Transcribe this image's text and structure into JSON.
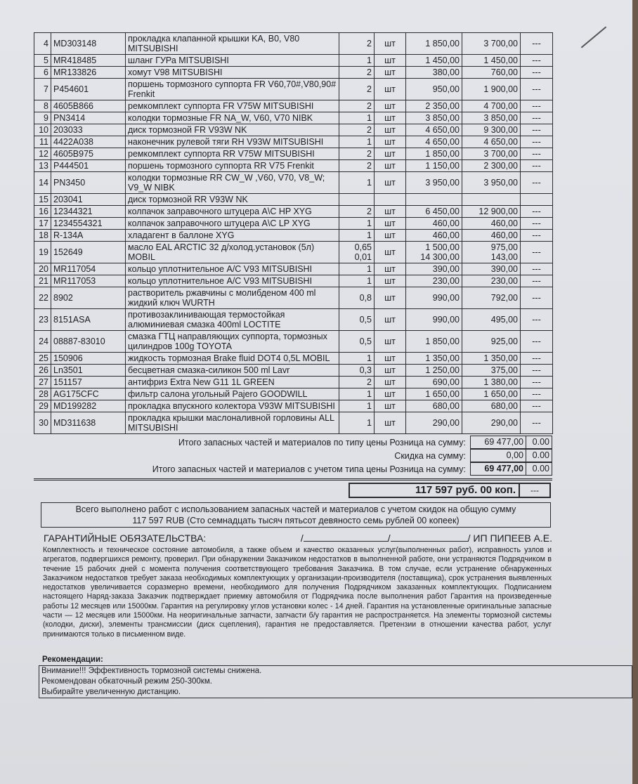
{
  "items": [
    {
      "n": "4",
      "code": "MD303148",
      "name": "прокладка клапанной крышки KA, B0, V80 MITSUBISHI",
      "qty": "2",
      "unit": "шт",
      "price": "1 850,00",
      "sum": "3 700,00",
      "disc": "---",
      "lines": 2
    },
    {
      "n": "5",
      "code": "MR418485",
      "name": "шланг ГУРа MITSUBISHI",
      "qty": "1",
      "unit": "шт",
      "price": "1 450,00",
      "sum": "1 450,00",
      "disc": "---",
      "lines": 1
    },
    {
      "n": "6",
      "code": "MR133826",
      "name": "хомут V98 MITSUBISHI",
      "qty": "2",
      "unit": "шт",
      "price": "380,00",
      "sum": "760,00",
      "disc": "---",
      "lines": 1
    },
    {
      "n": "7",
      "code": "P454601",
      "name": "поршень тормозного суппорта FR V60,70#,V80,90# Frenkit",
      "qty": "2",
      "unit": "шт",
      "price": "950,00",
      "sum": "1 900,00",
      "disc": "---",
      "lines": 2
    },
    {
      "n": "8",
      "code": "4605B866",
      "name": "ремкомплект суппорта FR V75W MITSUBISHI",
      "qty": "2",
      "unit": "шт",
      "price": "2 350,00",
      "sum": "4 700,00",
      "disc": "---",
      "lines": 1
    },
    {
      "n": "9",
      "code": "PN3414",
      "name": "колодки тормозные FR NA_W, V60, V70 NIBK",
      "qty": "1",
      "unit": "шт",
      "price": "3 850,00",
      "sum": "3 850,00",
      "disc": "---",
      "lines": 1
    },
    {
      "n": "10",
      "code": "203033",
      "name": "диск тормозной FR V93W NK",
      "qty": "2",
      "unit": "шт",
      "price": "4 650,00",
      "sum": "9 300,00",
      "disc": "---",
      "lines": 1
    },
    {
      "n": "11",
      "code": "4422A038",
      "name": "наконечник рулевой тяги RH V93W MITSUBISHI",
      "qty": "1",
      "unit": "шт",
      "price": "4 650,00",
      "sum": "4 650,00",
      "disc": "---",
      "lines": 2
    },
    {
      "n": "12",
      "code": "4605B975",
      "name": "ремкомплект суппорта RR V75W MITSUBISHI",
      "qty": "2",
      "unit": "шт",
      "price": "1 850,00",
      "sum": "3 700,00",
      "disc": "---",
      "lines": 1
    },
    {
      "n": "13",
      "code": "P444501",
      "name": "поршень тормозного суппорта RR V75 Frenkit",
      "qty": "2",
      "unit": "шт",
      "price": "1 150,00",
      "sum": "2 300,00",
      "disc": "---",
      "lines": 1
    },
    {
      "n": "14",
      "code": "PN3450",
      "name": "колодки тормозные RR CW_W ,V60, V70, V8_W; V9_W NIBK",
      "qty": "1",
      "unit": "шт",
      "price": "3 950,00",
      "sum": "3 950,00",
      "disc": "---",
      "lines": 3
    },
    {
      "n": "15",
      "code": "203041",
      "name": "диск тормозной RR V93W NK",
      "qty": "",
      "unit": "",
      "price": "",
      "sum": "",
      "disc": "",
      "lines": 1
    },
    {
      "n": "16",
      "code": "12344321",
      "name": "колпачок заправочного штуцера A\\C HP XYG",
      "qty": "2",
      "unit": "шт",
      "price": "6 450,00",
      "sum": "12 900,00",
      "disc": "---",
      "lines": 1
    },
    {
      "n": "17",
      "code": "1234554321",
      "name": "колпачок заправочного штуцера A\\C LP XYG",
      "qty": "1",
      "unit": "шт",
      "price": "460,00",
      "sum": "460,00",
      "disc": "---",
      "lines": 1
    },
    {
      "n": "18",
      "code": "R-134A",
      "name": "хладагент в баллоне XYG",
      "qty": "1",
      "unit": "шт",
      "price": "460,00",
      "sum": "460,00",
      "disc": "---",
      "lines": 1
    },
    {
      "n": "19",
      "code": "152649",
      "name": "масло EAL ARCTIC 32 д/холод.установок (5л) MOBIL",
      "qty": "0,65",
      "unit": "шт",
      "price": "1 500,00",
      "sum": "975,00",
      "disc": "---",
      "lines": 2,
      "qty2": "0,01",
      "price2": "14 300,00",
      "sum2": "143,00"
    },
    {
      "n": "20",
      "code": "MR117054",
      "name": "кольцо уплотнительное A/C V93 MITSUBISHI",
      "qty": "1",
      "unit": "шт",
      "price": "390,00",
      "sum": "390,00",
      "disc": "---",
      "lines": 1
    },
    {
      "n": "21",
      "code": "MR117053",
      "name": "кольцо уплотнительное A/C V93 MITSUBISHI",
      "qty": "1",
      "unit": "шт",
      "price": "230,00",
      "sum": "230,00",
      "disc": "---",
      "lines": 1
    },
    {
      "n": "22",
      "code": "8902",
      "name": "растворитель ржавчины с молибденом 400 ml жидкий ключ WURTH",
      "qty": "0,8",
      "unit": "шт",
      "price": "990,00",
      "sum": "792,00",
      "disc": "---",
      "lines": 2
    },
    {
      "n": "23",
      "code": "8151ASA",
      "name": "противозаклинивающая термостойкая алюминиевая смазка 400ml LOCTITE",
      "qty": "0,5",
      "unit": "шт",
      "price": "990,00",
      "sum": "495,00",
      "disc": "---",
      "lines": 2
    },
    {
      "n": "24",
      "code": "08887-83010",
      "name": "смазка ГТЦ направляющих суппорта, тормозных цилиндров 100g TOYOTA",
      "qty": "0,5",
      "unit": "шт",
      "price": "1 850,00",
      "sum": "925,00",
      "disc": "---",
      "lines": 2
    },
    {
      "n": "25",
      "code": "150906",
      "name": "жидкость тормозная Brake fluid DOT4 0,5L MOBIL",
      "qty": "1",
      "unit": "шт",
      "price": "1 350,00",
      "sum": "1 350,00",
      "disc": "---",
      "lines": 2
    },
    {
      "n": "26",
      "code": "Ln3501",
      "name": "бесцветная смазка-силикон 500 ml Lavr",
      "qty": "0,3",
      "unit": "шт",
      "price": "1 250,00",
      "sum": "375,00",
      "disc": "---",
      "lines": 1
    },
    {
      "n": "27",
      "code": "151157",
      "name": "антифриз Extra New G11 1L GREEN",
      "qty": "2",
      "unit": "шт",
      "price": "690,00",
      "sum": "1 380,00",
      "disc": "---",
      "lines": 1
    },
    {
      "n": "28",
      "code": "AG175CFC",
      "name": "фильтр салона угольный Pajero GOODWILL",
      "qty": "1",
      "unit": "шт",
      "price": "1 650,00",
      "sum": "1 650,00",
      "disc": "---",
      "lines": 1
    },
    {
      "n": "29",
      "code": "MD199282",
      "name": "прокладка впускного колектора V93W MITSUBISHI",
      "qty": "1",
      "unit": "шт",
      "price": "680,00",
      "sum": "680,00",
      "disc": "---",
      "lines": 2
    },
    {
      "n": "30",
      "code": "MD311638",
      "name": "прокладка крышки маслоналивной горловины ALL MITSUBISHI",
      "qty": "1",
      "unit": "шт",
      "price": "290,00",
      "sum": "290,00",
      "disc": "---",
      "lines": 2
    }
  ],
  "summary": {
    "retail_label": "Итого запасных частей и материалов по типу цены Розница на сумму:",
    "retail_value": "69 477,00",
    "retail_disc": "0.00",
    "discount_label": "Скидка на сумму:",
    "discount_value": "0,00",
    "discount_disc": "0.00",
    "total_label": "Итого запасных частей и материалов с учетом типа цены Розница на сумму:",
    "total_value": "69 477,00",
    "total_disc": "0.00",
    "grand_total": "117 597 руб. 00 коп.",
    "grand_dash": "---",
    "all_work_line1": "Всего выполнено работ с использованием запасных частей и материалов с учетом скидок на общую сумму",
    "all_work_line2": "117 597 RUB (Сто семнадцать тысяч пятьсот девяносто семь рублей 00 копеек)"
  },
  "warranty": {
    "title": "ГАРАНТИЙНЫЕ ОБЯЗАТЕЛЬСТВА:",
    "signer": "/ ИП ПИПЕЕВ А.Е.",
    "text": "Комплектность и техническое состояние автомобиля, а также объем и качество оказанных услуг(выполненных работ), исправность узлов и агрегатов, подвергшихся ремонту, проверил. При обнаружении Заказчиком недостатков в выполненной работе, они устраняются Подрядчиком в течение 15 рабочих дней с момента получения соответствующего требования Заказчика. В том случае, если устранение обнаруженных Заказчиком недостатков требует заказа необходимых комплектующих у организации-производителя (поставщика), срок устранения выявленных недостатков увеличивается соразмерно времени, необходимого для получения Подрядчиком заказанных комплектующих. Подписанием настоящего Наряд-заказа Заказчик подтверждает приемку автомобиля от Подрядчика после выполнения работ Гарантия на произведенные работы 12 месяцев или 15000км. Гарантия на регулировку углов установки колес - 14 дней. Гарантия на установленные оригинальные запасные части — 12 месяцев или 15000км. На неоригинальные запчасти, запчасти б/у гарантия не распространяется. На элементы тормозной системы (колодки, диски), элементы трансмиссии (диск сцепления), гарантия не предоставляется. Претензии в отношении качества работ, услуг принимаются только в письменном виде."
  },
  "recommendations": {
    "title": "Рекомендации:",
    "lines": [
      "Внимание!!! Эффективность тормозной системы снижена.",
      "Рекомендован обкаточный режим  250-300км.",
      "Выбирайте увеличенную дистанцию."
    ]
  }
}
